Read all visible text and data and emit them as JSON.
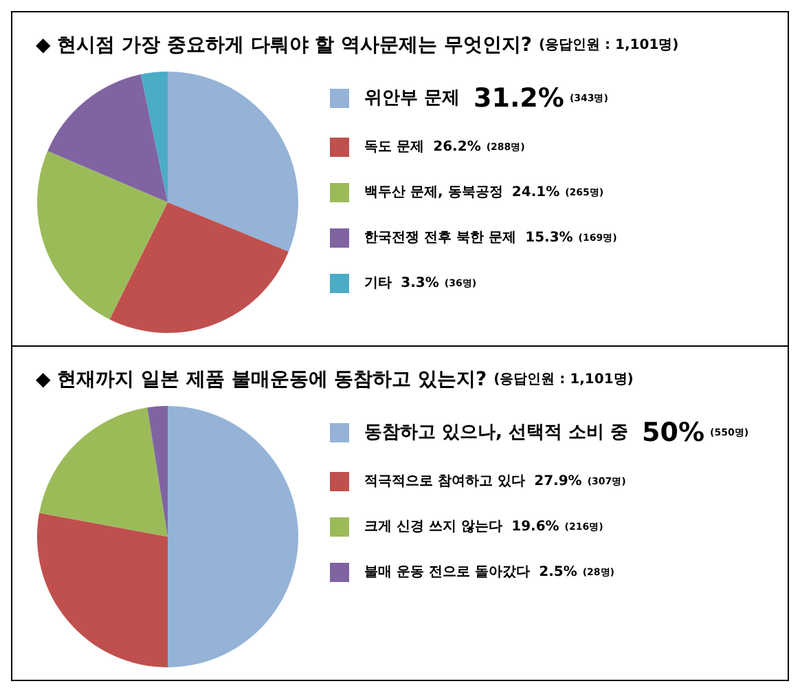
{
  "chart_data": [
    {
      "type": "pie",
      "title": "◆ 현시점 가장 중요하게 다뤄야 할 역사문제는 무엇인지?",
      "subtitle": "(응답인원 : 1,101명)",
      "categories": [
        "위안부 문제",
        "독도 문제",
        "백두산 문제, 동북공정",
        "한국전쟁 전후 북한 문제",
        "기타"
      ],
      "values": [
        31.2,
        26.2,
        24.1,
        15.3,
        3.3
      ],
      "value_labels": [
        "31.2% (343명)",
        "26.2% (288명)",
        "24.1% (265명)",
        "15.3% (169명)",
        "3.3% (36명)"
      ],
      "colors": [
        "#95b3d7",
        "#c0504d",
        "#9bbb59",
        "#8064a2",
        "#4bacc6"
      ],
      "legend": "right"
    },
    {
      "type": "pie",
      "title": "◆ 현재까지 일본 제품 불매운동에 동참하고 있는지?",
      "subtitle": "(응답인원 : 1,101명)",
      "categories": [
        "동참하고 있으나, 선택적 소비 중",
        "적극적으로 참여하고 있다",
        "크게 신경 쓰지 않는다",
        "불매 운동 전으로 돌아갔다"
      ],
      "values": [
        50,
        27.9,
        19.6,
        2.5
      ],
      "value_labels": [
        "50% (550명)",
        "27.9% (307명)",
        "19.6% (216명)",
        "2.5% (28명)"
      ],
      "colors": [
        "#95b3d7",
        "#c0504d",
        "#9bbb59",
        "#8064a2"
      ],
      "legend": "right"
    }
  ]
}
